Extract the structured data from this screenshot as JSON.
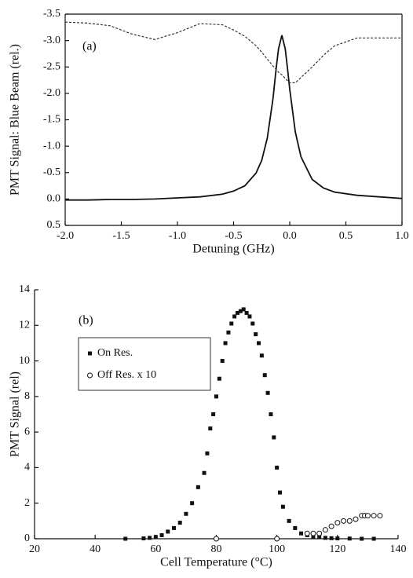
{
  "chart_data": [
    {
      "type": "line",
      "annotation": "(a)",
      "xlabel": "Detuning (GHz)",
      "ylabel": "PMT Signal: Blue Beam (rel.)",
      "x": [
        -2.0,
        -1.8,
        -1.6,
        -1.4,
        -1.2,
        -1.0,
        -0.8,
        -0.6,
        -0.5,
        -0.4,
        -0.3,
        -0.25,
        -0.2,
        -0.15,
        -0.12,
        -0.1,
        -0.07,
        -0.04,
        -0.02,
        0.0,
        0.05,
        0.1,
        0.2,
        0.3,
        0.4,
        0.6,
        0.8,
        1.0
      ],
      "series": [
        {
          "color": "#111111",
          "linestyle": "solid",
          "values": [
            0.02,
            0.02,
            0.01,
            0.01,
            0.0,
            -0.02,
            -0.04,
            -0.09,
            -0.15,
            -0.25,
            -0.49,
            -0.73,
            -1.15,
            -1.89,
            -2.48,
            -2.84,
            -3.1,
            -2.84,
            -2.48,
            -2.08,
            -1.27,
            -0.8,
            -0.37,
            -0.21,
            -0.13,
            -0.07,
            -0.04,
            -0.01
          ]
        },
        {
          "color": "#333333",
          "linestyle": "dashed",
          "values": [
            -3.35,
            -3.33,
            -3.28,
            -3.12,
            -3.02,
            -3.15,
            -3.32,
            -3.3,
            -3.2,
            -3.08,
            -2.9,
            -2.78,
            -2.65,
            -2.52,
            -2.45,
            -2.4,
            -2.35,
            -2.28,
            -2.24,
            -2.2,
            -2.2,
            -2.3,
            -2.5,
            -2.72,
            -2.9,
            -3.05,
            -3.05,
            -3.05
          ]
        }
      ],
      "xlim": [
        -2.0,
        1.0
      ],
      "xticks": [
        {
          "value": -2,
          "label": "-2.0"
        },
        -1.5,
        {
          "value": -1,
          "label": "-1.0"
        },
        -0.5,
        {
          "value": 0,
          "label": "0.0"
        },
        0.5,
        {
          "value": 1,
          "label": "1.0"
        }
      ],
      "ylim": [
        0.5,
        -3.5
      ],
      "yticks": [
        0.5,
        {
          "value": 0,
          "label": "0.0"
        },
        -0.5,
        {
          "value": -1,
          "label": "-1.0"
        },
        -1.5,
        {
          "value": -2,
          "label": "-2.0"
        },
        -2.5,
        {
          "value": -3,
          "label": "-3.0"
        },
        -3.5
      ]
    },
    {
      "type": "scatter",
      "annotation": "(b)",
      "xlabel": "Cell Temperature (°C)",
      "ylabel": "PMT Signal (rel)",
      "legend": "upper left",
      "series": [
        {
          "name": "On Res.",
          "marker": "square",
          "color": "#111111",
          "x": [
            50,
            56,
            58,
            60,
            62,
            64,
            66,
            68,
            70,
            72,
            74,
            76,
            77,
            78,
            79,
            80,
            81,
            82,
            83,
            84,
            85,
            86,
            87,
            88,
            89,
            90,
            91,
            92,
            93,
            94,
            95,
            96,
            97,
            98,
            99,
            100,
            101,
            102,
            104,
            106,
            108,
            110,
            112,
            114,
            116,
            118,
            120,
            124,
            128,
            132
          ],
          "values": [
            0,
            0.02,
            0.05,
            0.1,
            0.2,
            0.4,
            0.6,
            0.9,
            1.4,
            2.0,
            2.9,
            3.7,
            4.8,
            6.2,
            7.0,
            8.0,
            9.0,
            10.0,
            11.0,
            11.6,
            12.1,
            12.5,
            12.7,
            12.8,
            12.9,
            12.7,
            12.5,
            12.1,
            11.5,
            11.0,
            10.3,
            9.2,
            8.2,
            7.0,
            5.7,
            4.0,
            2.6,
            1.8,
            1.0,
            0.6,
            0.3,
            0.2,
            0.1,
            0.1,
            0.05,
            0.03,
            0.02,
            0.01,
            0,
            0
          ]
        },
        {
          "name": "Off Res. x 10",
          "marker": "circle",
          "color": "#111111",
          "x": [
            80,
            100,
            110,
            112,
            114,
            116,
            118,
            120,
            122,
            124,
            126,
            128,
            129,
            130,
            132,
            134
          ],
          "values": [
            0,
            0,
            0.3,
            0.3,
            0.3,
            0.5,
            0.7,
            0.9,
            1.0,
            1.0,
            1.1,
            1.3,
            1.3,
            1.3,
            1.3,
            1.3
          ]
        }
      ],
      "xlim": [
        20,
        140
      ],
      "xticks": [
        20,
        40,
        60,
        80,
        100,
        120,
        140
      ],
      "ylim": [
        0,
        14
      ],
      "yticks": [
        0,
        2,
        4,
        6,
        8,
        10,
        12,
        14
      ]
    }
  ]
}
